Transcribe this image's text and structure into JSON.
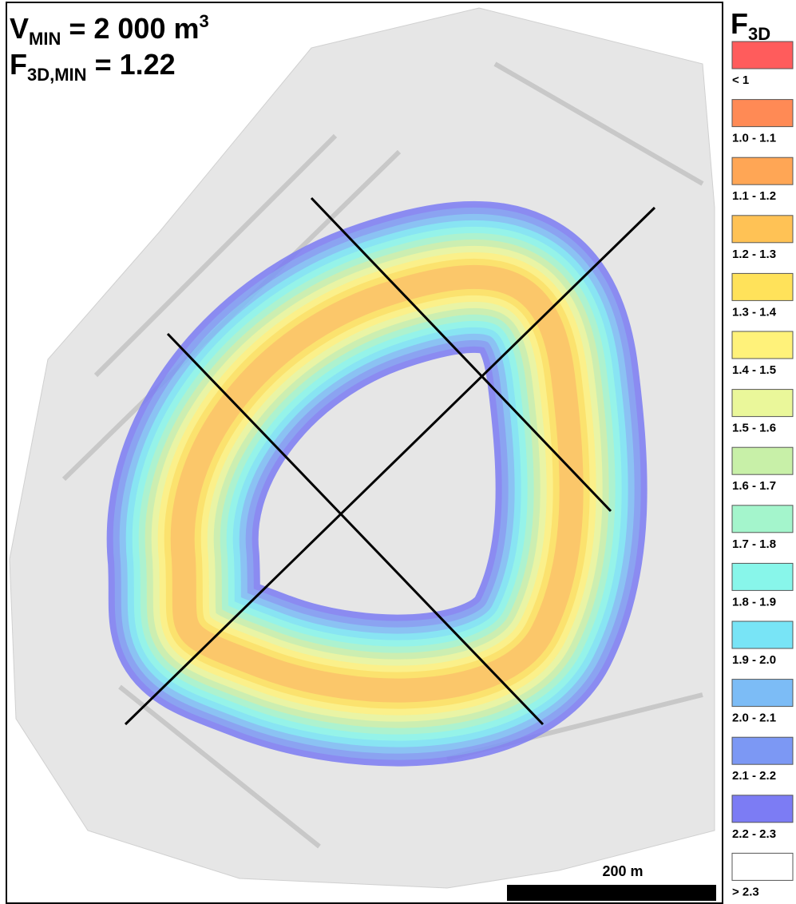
{
  "header": {
    "line1": {
      "base": "V",
      "sub": "MIN",
      "text": " = 2 000 m",
      "sup": "3"
    },
    "line2": {
      "base": "F",
      "sub": "3D,MIN",
      "text": " = 1.22"
    }
  },
  "legend": {
    "title": {
      "base": "F",
      "sub": "3D"
    },
    "items": [
      {
        "label": "< 1",
        "color": "#ff5c5c"
      },
      {
        "label": "1.0 - 1.1",
        "color": "#ff8a55"
      },
      {
        "label": "1.1 - 1.2",
        "color": "#ffa655"
      },
      {
        "label": "1.2 - 1.3",
        "color": "#ffc255"
      },
      {
        "label": "1.3 - 1.4",
        "color": "#ffe25a"
      },
      {
        "label": "1.4 - 1.5",
        "color": "#fff27a"
      },
      {
        "label": "1.5 - 1.6",
        "color": "#eaf79a"
      },
      {
        "label": "1.6 - 1.7",
        "color": "#c8f0a8"
      },
      {
        "label": "1.7 - 1.8",
        "color": "#a4f5cc"
      },
      {
        "label": "1.8 - 1.9",
        "color": "#88f6ea"
      },
      {
        "label": "1.9 - 2.0",
        "color": "#78e4f6"
      },
      {
        "label": "2.0 - 2.1",
        "color": "#7cbcf6"
      },
      {
        "label": "2.1 - 2.2",
        "color": "#7c98f4"
      },
      {
        "label": "2.2 - 2.3",
        "color": "#7c7cf4"
      },
      {
        "label": "> 2.3",
        "color": "#ffffff"
      }
    ]
  },
  "scale_bar": {
    "label": "200 m"
  }
}
